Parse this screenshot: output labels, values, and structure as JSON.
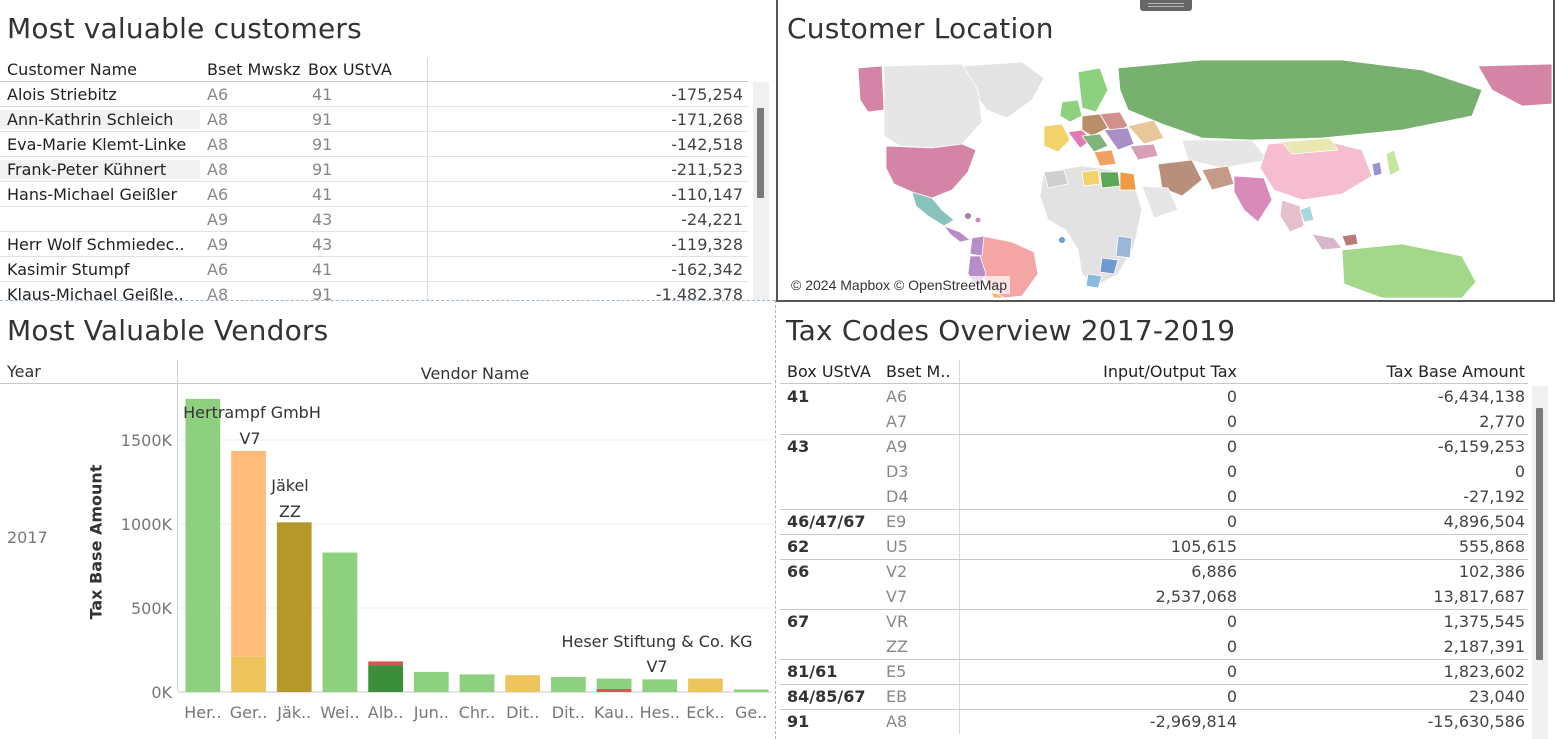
{
  "customers": {
    "title": "Most valuable customers",
    "headers": [
      "Customer Name",
      "Bset Mwskz",
      "Box UStVA"
    ],
    "rows": [
      {
        "name": "Alois Striebitz",
        "mwskz": "A6",
        "box": "41",
        "value": "-175,254"
      },
      {
        "name": "Ann-Kathrin Schleich",
        "mwskz": "A8",
        "box": "91",
        "value": "-171,268"
      },
      {
        "name": "Eva-Marie Klemt-Linke",
        "mwskz": "A8",
        "box": "91",
        "value": "-142,518"
      },
      {
        "name": "Frank-Peter Kühnert",
        "mwskz": "A8",
        "box": "91",
        "value": "-211,523"
      },
      {
        "name": "Hans-Michael Geißler",
        "mwskz": "A6",
        "box": "41",
        "value": "-110,147"
      },
      {
        "name": "",
        "mwskz": "A9",
        "box": "43",
        "value": "-24,221"
      },
      {
        "name": "Herr Wolf Schmiedec..",
        "mwskz": "A9",
        "box": "43",
        "value": "-119,328"
      },
      {
        "name": "Kasimir Stumpf",
        "mwskz": "A6",
        "box": "41",
        "value": "-162,342"
      },
      {
        "name": "Klaus-Michael Geißle..",
        "mwskz": "A8",
        "box": "91",
        "value": "-1,482,378"
      }
    ]
  },
  "map": {
    "title": "Customer Location",
    "credit": "© 2024 Mapbox © OpenStreetMap"
  },
  "vendors": {
    "title": "Most Valuable Vendors",
    "year_header": "Year",
    "vendor_header": "Vendor Name",
    "year": "2017",
    "ylabel": "Tax Base Amount",
    "annotations": [
      {
        "text1": "Hertrampf GmbH",
        "text2": "",
        "bar": 0
      },
      {
        "text1": "V7",
        "text2": "",
        "bar": 1
      },
      {
        "text1": "Jäkel",
        "text2": "ZZ",
        "bar": 2
      },
      {
        "text1": "Heser Stiftung & Co. KG",
        "text2": "V7",
        "bar": 10
      }
    ]
  },
  "chart_data": {
    "type": "bar",
    "stacked": true,
    "ylabel": "Tax Base Amount",
    "ylim": [
      0,
      1750000
    ],
    "yticks": [
      0,
      500000,
      1000000,
      1500000
    ],
    "ytick_labels": [
      "0K",
      "500K",
      "1000K",
      "1500K"
    ],
    "categories": [
      "Her..",
      "Ger..",
      "Jäk..",
      "Wei..",
      "Alb..",
      "Jun..",
      "Chr..",
      "Dit..",
      "Dit..",
      "Kau..",
      "Hes..",
      "Eck..",
      "Ge.."
    ],
    "series": [
      {
        "color": "#8dd17e",
        "values": [
          1745000,
          0,
          0,
          830000,
          0,
          120000,
          105000,
          0,
          90000,
          0,
          75000,
          0,
          15000
        ]
      },
      {
        "color": "#edc55c",
        "values": [
          0,
          210000,
          0,
          0,
          0,
          0,
          0,
          100000,
          0,
          0,
          0,
          80000,
          0
        ]
      },
      {
        "color": "#ffbc7a",
        "values": [
          0,
          1225000,
          0,
          0,
          0,
          0,
          0,
          0,
          0,
          0,
          0,
          0,
          0
        ]
      },
      {
        "color": "#b5982a",
        "values": [
          0,
          0,
          1010000,
          0,
          0,
          0,
          0,
          0,
          0,
          0,
          0,
          0,
          0
        ]
      },
      {
        "color": "#3b8e3a",
        "values": [
          0,
          0,
          0,
          0,
          160000,
          0,
          0,
          0,
          0,
          0,
          0,
          0,
          0
        ]
      },
      {
        "color": "#d95454",
        "values": [
          0,
          0,
          0,
          0,
          22000,
          0,
          0,
          0,
          0,
          18000,
          0,
          0,
          0
        ]
      },
      {
        "color": "#8dd17e",
        "values": [
          0,
          0,
          0,
          0,
          0,
          0,
          0,
          0,
          0,
          62000,
          0,
          0,
          0
        ]
      }
    ]
  },
  "tax": {
    "title": "Tax Codes Overview  2017-2019",
    "headers": [
      "Box UStVA",
      "Bset M..",
      "Input/Output Tax",
      "Tax Base Amount"
    ],
    "rows": [
      {
        "box": "41",
        "mwskz": "A6",
        "io": "0",
        "base": "-6,434,138",
        "group_start": true
      },
      {
        "box": "",
        "mwskz": "A7",
        "io": "0",
        "base": "2,770"
      },
      {
        "box": "43",
        "mwskz": "A9",
        "io": "0",
        "base": "-6,159,253",
        "group_start": true
      },
      {
        "box": "",
        "mwskz": "D3",
        "io": "0",
        "base": "0"
      },
      {
        "box": "",
        "mwskz": "D4",
        "io": "0",
        "base": "-27,192"
      },
      {
        "box": "46/47/67",
        "mwskz": "E9",
        "io": "0",
        "base": "4,896,504",
        "group_start": true
      },
      {
        "box": "62",
        "mwskz": "U5",
        "io": "105,615",
        "base": "555,868",
        "group_start": true
      },
      {
        "box": "66",
        "mwskz": "V2",
        "io": "6,886",
        "base": "102,386",
        "group_start": true
      },
      {
        "box": "",
        "mwskz": "V7",
        "io": "2,537,068",
        "base": "13,817,687"
      },
      {
        "box": "67",
        "mwskz": "VR",
        "io": "0",
        "base": "1,375,545",
        "group_start": true
      },
      {
        "box": "",
        "mwskz": "ZZ",
        "io": "0",
        "base": "2,187,391"
      },
      {
        "box": "81/61",
        "mwskz": "E5",
        "io": "0",
        "base": "1,823,602",
        "group_start": true
      },
      {
        "box": "84/85/67",
        "mwskz": "EB",
        "io": "0",
        "base": "23,040",
        "group_start": true
      },
      {
        "box": "91",
        "mwskz": "A8",
        "io": "-2,969,814",
        "base": "-15,630,586",
        "group_start": true
      }
    ]
  }
}
